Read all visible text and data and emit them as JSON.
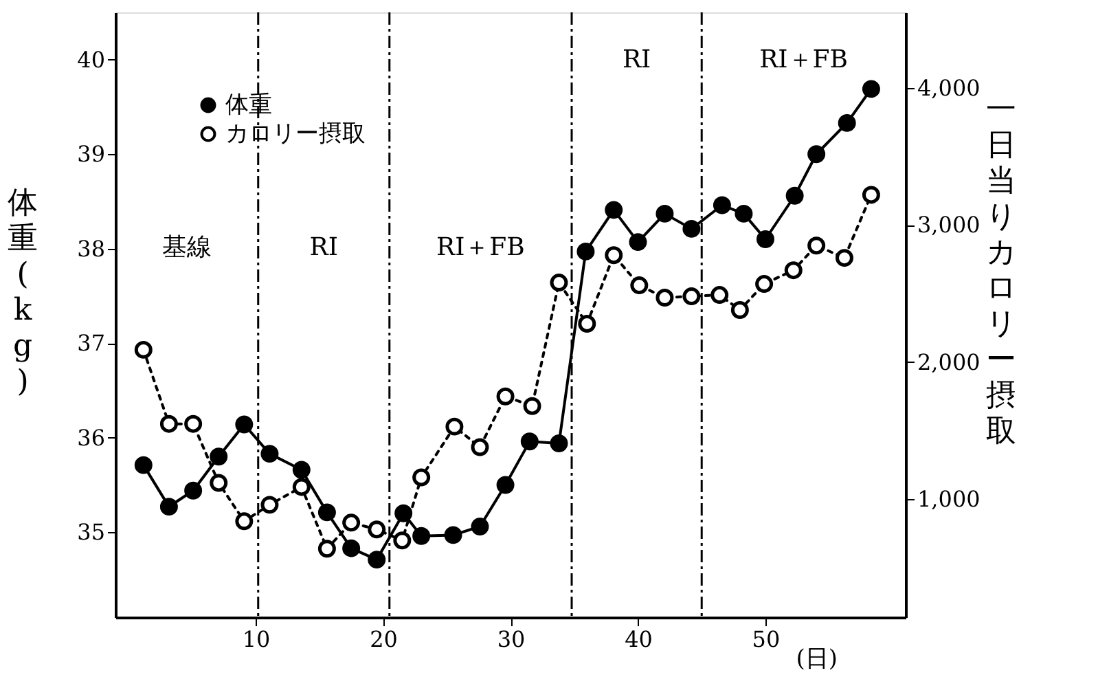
{
  "chart_data": {
    "type": "line",
    "xlabel": "(日)",
    "ylabel": "体重(kg)",
    "y2label": "一日当りカロリー摂取",
    "xlim": [
      -1,
      61
    ],
    "xticks": [
      10,
      20,
      30,
      40,
      50
    ],
    "ylim": [
      34.1,
      40.5
    ],
    "yticks": [
      35,
      36,
      37,
      38,
      39,
      40
    ],
    "y2lim": [
      140,
      4550
    ],
    "y2ticks": [
      {
        "value": 1000,
        "label": "1,000"
      },
      {
        "value": 2000,
        "label": "2,000"
      },
      {
        "value": 3000,
        "label": "3,000"
      },
      {
        "value": 4000,
        "label": "4,000"
      }
    ],
    "legend": "top left",
    "marker": "circle",
    "grid": false,
    "series": [
      {
        "name": "体重",
        "color": "#000000",
        "line_style": "solid",
        "x": [
          1.2,
          3.2,
          5.1,
          7.1,
          9.1,
          11.1,
          13.6,
          15.6,
          17.5,
          19.5,
          21.6,
          23,
          25.5,
          27.6,
          29.6,
          31.5,
          33.8,
          35.9,
          38.1,
          40,
          42.1,
          44.2,
          46.6,
          48.3,
          50,
          52.3,
          54,
          56.4,
          58.3
        ],
        "values": [
          35.71,
          35.27,
          35.44,
          35.8,
          36.14,
          35.83,
          35.66,
          35.21,
          34.83,
          34.71,
          35.2,
          34.96,
          34.97,
          35.06,
          35.5,
          35.96,
          35.94,
          37.97,
          38.41,
          38.07,
          38.37,
          38.21,
          38.46,
          38.37,
          38.1,
          38.56,
          39.0,
          39.33,
          39.69
        ]
      },
      {
        "name": "カロリー摂取",
        "color": "#000000",
        "line_style": "dotted",
        "axis": "y2",
        "x": [
          1.2,
          3.2,
          5.1,
          7.1,
          9.1,
          11.1,
          13.6,
          15.6,
          17.5,
          19.5,
          21.5,
          23,
          25.6,
          27.6,
          29.6,
          31.7,
          33.8,
          36,
          38.1,
          40.1,
          42.1,
          44.2,
          46.4,
          48,
          49.9,
          52.2,
          54,
          56.2,
          58.3
        ],
        "values": [
          2090,
          1550,
          1550,
          1120,
          840,
          960,
          1090,
          640,
          830,
          780,
          700,
          1160,
          1530,
          1380,
          1750,
          1680,
          2580,
          2280,
          2780,
          2560,
          2470,
          2480,
          2490,
          2380,
          2570,
          2670,
          2850,
          2760,
          3220
        ]
      }
    ],
    "ref_lines": [
      {
        "axis": "x",
        "value": 10.2,
        "line_style": "dashdot"
      },
      {
        "axis": "x",
        "value": 20.5,
        "line_style": "dashdot"
      },
      {
        "axis": "x",
        "value": 34.8,
        "line_style": "dashdot"
      },
      {
        "axis": "x",
        "value": 45.0,
        "line_style": "dashdot"
      }
    ],
    "annotations": [
      "基線",
      "RI",
      "RI＋FB",
      "RI",
      "RI＋FB"
    ]
  }
}
